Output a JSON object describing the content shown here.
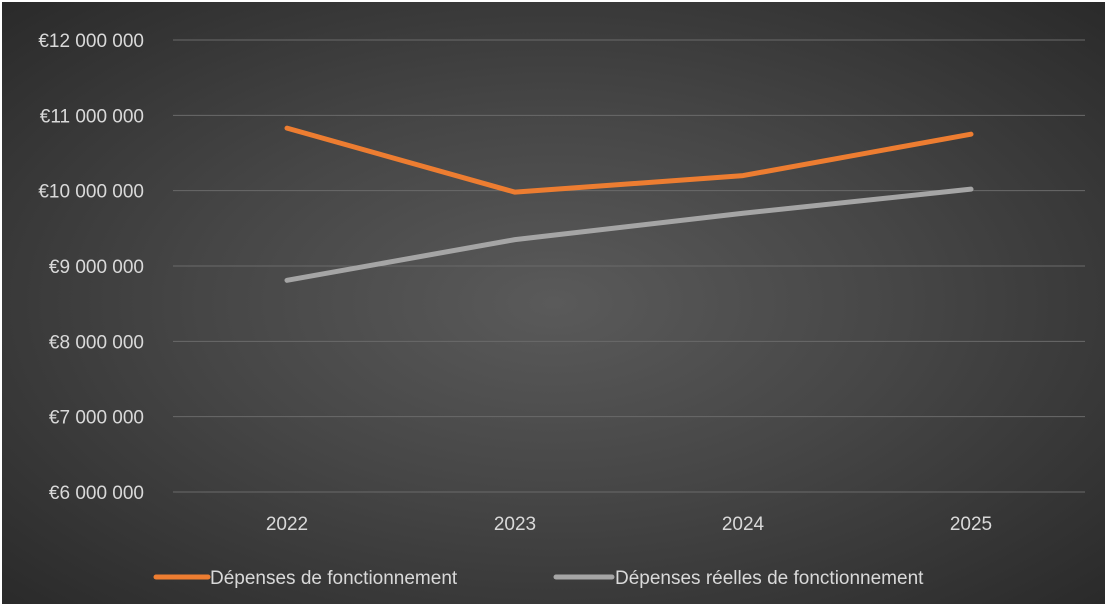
{
  "chart_data": {
    "type": "line",
    "title": "",
    "xlabel": "",
    "ylabel": "",
    "categories": [
      "2022",
      "2023",
      "2024",
      "2025"
    ],
    "ylim": [
      6000000,
      12000000
    ],
    "yticks": [
      6000000,
      7000000,
      8000000,
      9000000,
      10000000,
      11000000,
      12000000
    ],
    "ytick_labels": [
      "€6 000 000",
      "€7 000 000",
      "€8 000 000",
      "€9 000 000",
      "€10 000 000",
      "€11 000 000",
      "€12 000 000"
    ],
    "grid": "horizontal",
    "legend_position": "bottom",
    "series": [
      {
        "name": "Dépenses de fonctionnement",
        "color": "#ed7d31",
        "values": [
          10830000,
          9980000,
          10200000,
          10750000
        ]
      },
      {
        "name": "Dépenses réelles de fonctionnement",
        "color": "#a5a5a5",
        "values": [
          8810000,
          9350000,
          9700000,
          10020000
        ]
      }
    ]
  }
}
